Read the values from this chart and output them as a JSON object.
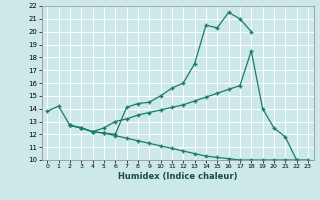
{
  "xlabel": "Humidex (Indice chaleur)",
  "xlim": [
    -0.5,
    23.5
  ],
  "ylim": [
    10,
    22
  ],
  "xticks": [
    0,
    1,
    2,
    3,
    4,
    5,
    6,
    7,
    8,
    9,
    10,
    11,
    12,
    13,
    14,
    15,
    16,
    17,
    18,
    19,
    20,
    21,
    22,
    23
  ],
  "yticks": [
    10,
    11,
    12,
    13,
    14,
    15,
    16,
    17,
    18,
    19,
    20,
    21,
    22
  ],
  "line_color": "#1a7a6e",
  "bg_color": "#cce8e8",
  "grid_color": "#ffffff",
  "line1_x": [
    0,
    1,
    2,
    3,
    4,
    5,
    6,
    7,
    8,
    9,
    10,
    11,
    12,
    13,
    14,
    15,
    16,
    17,
    18
  ],
  "line1_y": [
    13.8,
    14.2,
    12.7,
    12.5,
    12.2,
    12.1,
    12.0,
    14.1,
    14.4,
    14.5,
    15.0,
    15.6,
    16.0,
    17.5,
    20.5,
    20.3,
    21.5,
    21.0,
    20.0
  ],
  "line2_x": [
    2,
    3,
    4,
    5,
    6,
    7,
    8,
    9,
    10,
    11,
    12,
    13,
    14,
    15,
    16,
    17,
    18,
    19,
    20,
    21,
    22
  ],
  "line2_y": [
    12.7,
    12.5,
    12.2,
    12.5,
    13.0,
    13.2,
    13.5,
    13.7,
    13.9,
    14.1,
    14.3,
    14.6,
    14.9,
    15.2,
    15.5,
    15.8,
    18.5,
    14.0,
    12.5,
    11.8,
    10.0
  ],
  "line3_x": [
    2,
    3,
    4,
    5,
    6,
    7,
    8,
    9,
    10,
    11,
    12,
    13,
    14,
    15,
    16,
    17,
    18,
    19,
    20,
    21,
    22,
    23
  ],
  "line3_y": [
    12.7,
    12.5,
    12.2,
    12.1,
    11.9,
    11.7,
    11.5,
    11.3,
    11.1,
    10.9,
    10.7,
    10.5,
    10.3,
    10.2,
    10.1,
    10.0,
    10.0,
    10.0,
    10.0,
    10.0,
    10.0,
    10.0
  ]
}
